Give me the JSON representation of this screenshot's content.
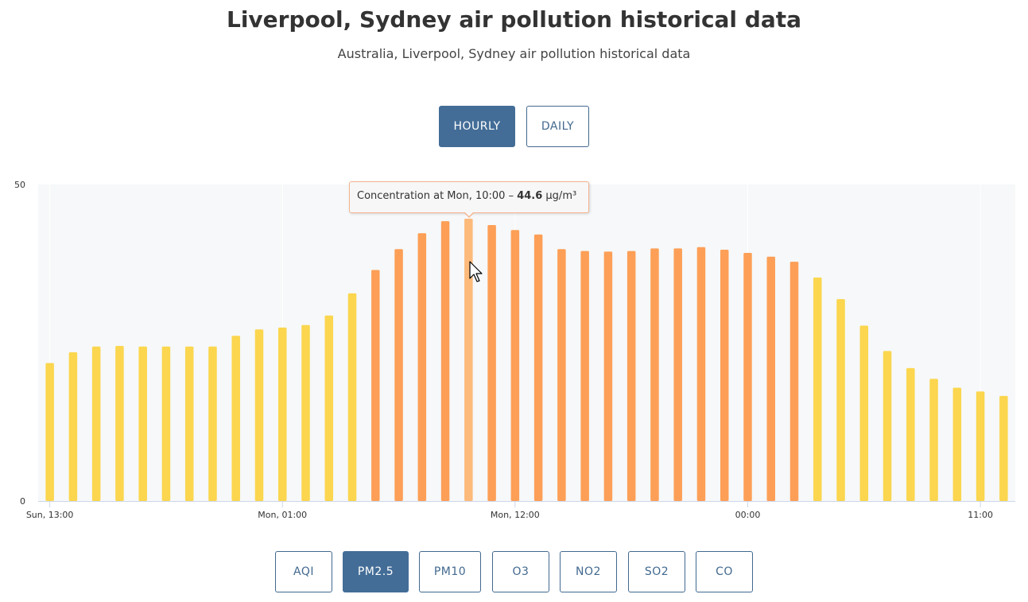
{
  "header": {
    "title": "Liverpool, Sydney air pollution historical data",
    "subtitle": "Australia, Liverpool, Sydney air pollution historical data"
  },
  "period_toggle": {
    "hourly_label": "HOURLY",
    "daily_label": "DAILY",
    "selected": "HOURLY"
  },
  "pollutants": {
    "items": [
      "AQI",
      "PM2.5",
      "PM10",
      "O3",
      "NO2",
      "SO2",
      "CO"
    ],
    "selected": "PM2.5"
  },
  "tooltip": {
    "prefix": "Concentration at ",
    "time": "Mon, 10:00",
    "separator": " – ",
    "value": "44.6",
    "unit": " µg/m³"
  },
  "chart_data": {
    "type": "bar",
    "x_tick_labels": [
      "Sun, 13:00",
      "Mon, 01:00",
      "Mon, 12:00",
      "00:00",
      "11:00"
    ],
    "x_tick_bar_index": [
      0,
      10,
      20,
      30,
      40
    ],
    "values": [
      21.8,
      23.5,
      24.4,
      24.5,
      24.4,
      24.4,
      24.4,
      24.4,
      26.1,
      27.1,
      27.4,
      27.8,
      29.3,
      32.8,
      36.5,
      39.8,
      42.3,
      44.2,
      44.6,
      43.6,
      42.8,
      42.1,
      39.8,
      39.5,
      39.4,
      39.5,
      39.9,
      39.9,
      40.1,
      39.7,
      39.2,
      38.6,
      37.8,
      35.3,
      31.9,
      27.7,
      23.7,
      21.0,
      19.3,
      17.9,
      17.3,
      16.6
    ],
    "highlight_index": 18,
    "ylim": [
      0,
      50
    ],
    "y_tick_labels": [
      "0",
      "50"
    ],
    "colors": {
      "moderate": "#fbd64e",
      "unhealthy_sensitive": "#fd9f57",
      "highlight": "#fdba7a",
      "plot_background": "#f6f8f9",
      "axis": "#ccd6eb"
    },
    "color_threshold": 35.5
  }
}
